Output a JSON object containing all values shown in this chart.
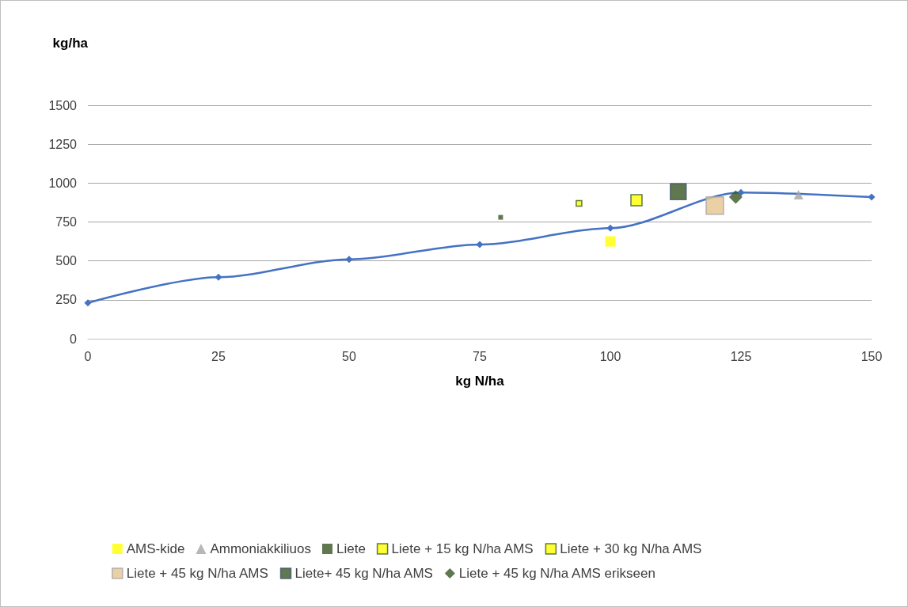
{
  "chart_data": {
    "type": "line",
    "xlabel": "kg N/ha",
    "ylabel": "kg/ha",
    "xlim": [
      0,
      150
    ],
    "xticks": [
      0,
      25,
      50,
      75,
      100,
      125,
      150
    ],
    "ylim": [
      0,
      1500
    ],
    "yticks": [
      0,
      250,
      500,
      750,
      1000,
      1250,
      1500
    ],
    "grid": "y",
    "legend": "bottom",
    "series": [
      {
        "color": "#4472c4",
        "marker": "diamond",
        "x": [
          0,
          25,
          50,
          75,
          100,
          125,
          150
        ],
        "values": [
          230,
          395,
          510,
          605,
          710,
          940,
          910
        ]
      },
      {
        "type": "scatter",
        "name": "AMS-kide",
        "color": "#ffff00",
        "marker": "square",
        "x": [
          100
        ],
        "values": [
          625
        ]
      },
      {
        "type": "scatter",
        "name": "Ammoniakkiliuos",
        "color": "#a5a5a5",
        "marker": "triangle",
        "x": [
          136
        ],
        "values": [
          925
        ]
      },
      {
        "type": "scatter",
        "name": "Liete",
        "color": "#375623",
        "marker": "square",
        "x": [
          79
        ],
        "values": [
          780
        ]
      },
      {
        "type": "scatter",
        "name": "Liete + 15 kg N/ha AMS",
        "color": "#ffff00",
        "marker": "square",
        "x": [
          94
        ],
        "values": [
          870
        ]
      },
      {
        "type": "scatter",
        "name": "Liete + 30 kg N/ha AMS",
        "color": "#ffff00",
        "marker": "square",
        "x": [
          105
        ],
        "values": [
          890
        ]
      },
      {
        "type": "scatter",
        "name": "Liete + 45 kg N/ha AMS",
        "color": "#e6c38f",
        "marker": "square",
        "x": [
          120
        ],
        "values": [
          855
        ]
      },
      {
        "type": "scatter",
        "name": "Liete+ 45 kg N/ha AMS",
        "color": "#375623",
        "marker": "square",
        "x": [
          113
        ],
        "values": [
          945
        ]
      },
      {
        "type": "scatter",
        "name": "Liete + 45 kg N/ha AMS erikseen",
        "color": "#375623",
        "marker": "diamond",
        "x": [
          124
        ],
        "values": [
          910
        ]
      }
    ]
  }
}
